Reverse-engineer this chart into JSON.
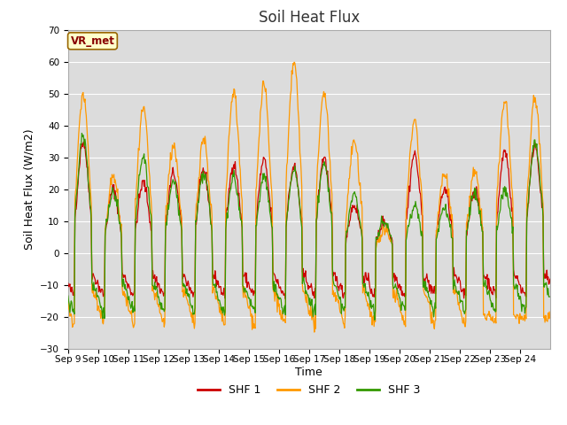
{
  "title": "Soil Heat Flux",
  "xlabel": "Time",
  "ylabel": "Soil Heat Flux (W/m2)",
  "ylim": [
    -30,
    70
  ],
  "xlim": [
    0,
    16
  ],
  "tick_labels": [
    "Sep 9",
    "Sep 10",
    "Sep 11",
    "Sep 12",
    "Sep 13",
    "Sep 14",
    "Sep 15",
    "Sep 16",
    "Sep 17",
    "Sep 18",
    "Sep 19",
    "Sep 20",
    "Sep 21",
    "Sep 22",
    "Sep 23",
    "Sep 24"
  ],
  "shf1_color": "#cc0000",
  "shf2_color": "#ff9900",
  "shf3_color": "#339900",
  "plot_bg_color": "#dcdcdc",
  "fig_bg_color": "#ffffff",
  "annotation_text": "VR_met",
  "annotation_bg": "#ffffcc",
  "annotation_border": "#996600",
  "legend_labels": [
    "SHF 1",
    "SHF 2",
    "SHF 3"
  ],
  "title_fontsize": 12,
  "axis_label_fontsize": 9,
  "tick_fontsize": 7.5,
  "yticks": [
    -30,
    -20,
    -10,
    0,
    10,
    20,
    30,
    40,
    50,
    60,
    70
  ],
  "n_days": 16,
  "pts_per_day": 48,
  "shf1_peaks": [
    35,
    20,
    22,
    25,
    26,
    28,
    29,
    27,
    30,
    15,
    10,
    31,
    20,
    20,
    32,
    34
  ],
  "shf2_peaks": [
    50,
    24,
    45,
    34,
    36,
    51,
    53,
    60,
    51,
    35,
    7,
    42,
    25,
    25,
    48,
    49
  ],
  "shf3_peaks": [
    37,
    19,
    30,
    22,
    25,
    24,
    24,
    26,
    28,
    18,
    10,
    15,
    14,
    19,
    20,
    35
  ],
  "shf1_night": -10,
  "shf2_night": -17,
  "shf3_night": -14,
  "rand_seed": 42
}
